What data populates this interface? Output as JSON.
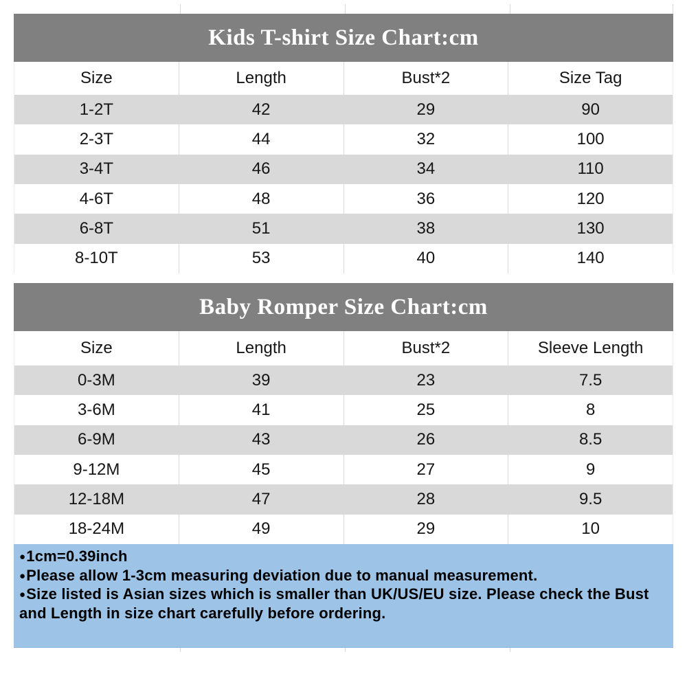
{
  "colors": {
    "title_band_bg": "#808080",
    "title_text": "#ffffff",
    "alt_row_bg": "#d9d9d9",
    "row_bg": "#ffffff",
    "notes_bg": "#9dc3e6",
    "grid_line": "#d9d9d9",
    "body_text": "#161616"
  },
  "tables": [
    {
      "title": "Kids T-shirt Size Chart:cm",
      "columns": [
        "Size",
        "Length",
        "Bust*2",
        "Size Tag"
      ],
      "rows": [
        [
          "1-2T",
          "42",
          "29",
          "90"
        ],
        [
          "2-3T",
          "44",
          "32",
          "100"
        ],
        [
          "3-4T",
          "46",
          "34",
          "110"
        ],
        [
          "4-6T",
          "48",
          "36",
          "120"
        ],
        [
          "6-8T",
          "51",
          "38",
          "130"
        ],
        [
          "8-10T",
          "53",
          "40",
          "140"
        ]
      ]
    },
    {
      "title": "Baby Romper Size Chart:cm",
      "columns": [
        "Size",
        "Length",
        "Bust*2",
        "Sleeve Length"
      ],
      "rows": [
        [
          "0-3M",
          "39",
          "23",
          "7.5"
        ],
        [
          "3-6M",
          "41",
          "25",
          "8"
        ],
        [
          "6-9M",
          "43",
          "26",
          "8.5"
        ],
        [
          "9-12M",
          "45",
          "27",
          "9"
        ],
        [
          "12-18M",
          "47",
          "28",
          "9.5"
        ],
        [
          "18-24M",
          "49",
          "29",
          "10"
        ]
      ]
    }
  ],
  "notes": {
    "bullet": "●",
    "items": [
      "1cm=0.39inch",
      "Please allow 1-3cm measuring deviation due to manual measurement.",
      "Size listed is Asian sizes which is smaller than UK/US/EU size. Please check the Bust and Length in size chart carefully before ordering."
    ]
  }
}
